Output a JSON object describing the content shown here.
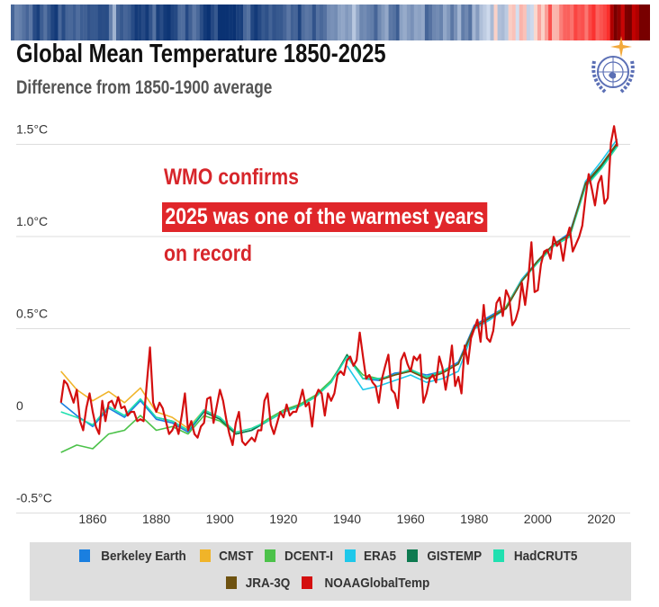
{
  "header": {
    "title": "Global Mean Temperature 1850-2025",
    "subtitle": "Difference from 1850-1900 average"
  },
  "annotation": {
    "line1": "WMO confirms",
    "line2": "2025 was one of the warmest years",
    "line3": "on record"
  },
  "colors": {
    "annotation": "#e0262a",
    "legend_bg": "#dedede",
    "grid": "#dddddd"
  },
  "logo": {
    "name": "wmo-emblem-icon"
  },
  "chart_data": {
    "type": "line",
    "title": "Global Mean Temperature 1850-2025",
    "subtitle": "Difference from 1850-1900 average",
    "xlim": [
      1850,
      2025
    ],
    "ylim": [
      -0.5,
      1.55
    ],
    "x_ticks": [
      "1860",
      "1880",
      "1900",
      "1920",
      "1940",
      "1960",
      "1980",
      "2000",
      "2020"
    ],
    "x_tick_values": [
      1860,
      1880,
      1900,
      1920,
      1940,
      1960,
      1980,
      2000,
      2020
    ],
    "y_ticks": [
      "1.5°C",
      "1.0°C",
      "0.5°C",
      "0",
      "-0.5°C"
    ],
    "y_tick_values": [
      1.5,
      1.0,
      0.5,
      0,
      -0.5
    ],
    "grid": true,
    "legend_position": "bottom",
    "series": [
      {
        "name": "Berkeley Earth",
        "color": "#1a7fe0",
        "start": 1850,
        "step": 5,
        "values": [
          0.05,
          -0.02,
          -0.08,
          0.02,
          -0.03,
          0.06,
          -0.04,
          -0.06,
          -0.11,
          0.0,
          -0.04,
          -0.12,
          -0.1,
          -0.05,
          0.0,
          0.04,
          0.08,
          0.16,
          0.3,
          0.18,
          0.17,
          0.21,
          0.22,
          0.2,
          0.22,
          0.27,
          0.47,
          0.52,
          0.57,
          0.72,
          0.82,
          0.91,
          0.97,
          1.24,
          1.34,
          1.46
        ]
      },
      {
        "name": "CMST",
        "color": "#f0b429",
        "start": 1850,
        "step": 5,
        "values": [
          0.22,
          0.12,
          0.06,
          0.11,
          0.05,
          0.13,
          0.0,
          -0.03,
          -0.09,
          0.01,
          -0.03,
          -0.11,
          -0.09,
          -0.05,
          0.0,
          0.03,
          0.08,
          0.16,
          0.31,
          0.18,
          0.18,
          0.2,
          0.23,
          0.19,
          0.22,
          0.26,
          0.46,
          0.51,
          0.56,
          0.71,
          0.81,
          0.9,
          0.95,
          1.22,
          1.32,
          1.44
        ]
      },
      {
        "name": "DCENT-I",
        "color": "#4cc24a",
        "start": 1850,
        "step": 5,
        "values": [
          -0.22,
          -0.18,
          -0.2,
          -0.12,
          -0.1,
          -0.02,
          -0.1,
          -0.08,
          -0.12,
          -0.02,
          -0.05,
          -0.12,
          -0.1,
          -0.04,
          0.01,
          0.04,
          0.09,
          0.17,
          0.3,
          0.2,
          0.18,
          0.2,
          0.22,
          0.19,
          0.21,
          0.26,
          0.46,
          0.51,
          0.57,
          0.72,
          0.82,
          0.91,
          0.96,
          1.23,
          1.33,
          1.45
        ]
      },
      {
        "name": "ERA5",
        "color": "#1ec8ea",
        "start": 1940,
        "step": 5,
        "values": [
          0.25,
          0.12,
          0.14,
          0.17,
          0.2,
          0.16,
          0.18,
          0.22,
          0.45,
          0.5,
          0.56,
          0.72,
          0.82,
          0.91,
          0.96,
          1.25,
          1.36,
          1.48
        ]
      },
      {
        "name": "GISTEMP",
        "color": "#0e7a50",
        "start": 1880,
        "step": 5,
        "values": [
          -0.03,
          -0.05,
          -0.1,
          0.0,
          -0.04,
          -0.12,
          -0.1,
          -0.05,
          0.0,
          0.03,
          0.08,
          0.16,
          0.31,
          0.18,
          0.18,
          0.2,
          0.23,
          0.19,
          0.22,
          0.26,
          0.46,
          0.51,
          0.56,
          0.71,
          0.81,
          0.9,
          0.95,
          1.23,
          1.33,
          1.45
        ]
      },
      {
        "name": "HadCRUT5",
        "color": "#20e0b0",
        "start": 1850,
        "step": 5,
        "values": [
          0.0,
          -0.03,
          -0.07,
          0.03,
          -0.02,
          0.07,
          -0.03,
          -0.05,
          -0.1,
          0.01,
          -0.03,
          -0.11,
          -0.09,
          -0.05,
          0.0,
          0.03,
          0.08,
          0.16,
          0.3,
          0.18,
          0.18,
          0.2,
          0.23,
          0.19,
          0.22,
          0.26,
          0.46,
          0.51,
          0.56,
          0.71,
          0.81,
          0.9,
          0.95,
          1.22,
          1.32,
          1.44
        ]
      },
      {
        "name": "JRA-3Q",
        "color": "#6e5210",
        "start": 1950,
        "step": 5,
        "values": [
          0.17,
          0.2,
          0.22,
          0.18,
          0.21,
          0.26,
          0.46,
          0.51,
          0.56,
          0.71,
          0.82,
          0.91,
          0.96,
          1.24,
          1.34,
          1.46
        ]
      },
      {
        "name": "NOAAGlobalTemp",
        "color": "#d40f0f",
        "start": 1850,
        "step": 1,
        "values": [
          0.05,
          0.17,
          0.15,
          0.1,
          0.05,
          0.12,
          -0.05,
          -0.1,
          0.02,
          0.1,
          0.0,
          -0.08,
          -0.12,
          0.06,
          -0.05,
          0.05,
          0.06,
          0.02,
          0.08,
          0.02,
          0.03,
          -0.02,
          0.0,
          0.0,
          -0.05,
          -0.04,
          -0.05,
          0.15,
          0.35,
          0.05,
          0.0,
          0.05,
          0.02,
          -0.05,
          -0.12,
          -0.1,
          -0.06,
          -0.12,
          -0.02,
          0.1,
          -0.1,
          -0.05,
          -0.12,
          -0.14,
          -0.08,
          -0.06,
          0.07,
          0.08,
          -0.06,
          0.03,
          0.12,
          0.06,
          -0.04,
          -0.12,
          -0.18,
          -0.06,
          0.0,
          -0.16,
          -0.18,
          -0.16,
          -0.14,
          -0.16,
          -0.1,
          -0.1,
          0.06,
          0.1,
          -0.07,
          -0.12,
          -0.06,
          0.0,
          -0.03,
          0.04,
          -0.02,
          0.0,
          0.0,
          0.05,
          0.12,
          0.03,
          0.05,
          -0.08,
          0.08,
          0.12,
          0.1,
          -0.02,
          0.1,
          0.06,
          0.1,
          0.2,
          0.22,
          0.2,
          0.28,
          0.3,
          0.25,
          0.28,
          0.43,
          0.3,
          0.18,
          0.2,
          0.16,
          0.14,
          0.05,
          0.18,
          0.25,
          0.31,
          0.12,
          0.1,
          0.02,
          0.28,
          0.32,
          0.26,
          0.22,
          0.3,
          0.28,
          0.31,
          0.05,
          0.1,
          0.18,
          0.2,
          0.16,
          0.3,
          0.24,
          0.12,
          0.22,
          0.36,
          0.14,
          0.19,
          0.1,
          0.36,
          0.26,
          0.4,
          0.45,
          0.5,
          0.38,
          0.58,
          0.4,
          0.38,
          0.44,
          0.59,
          0.62,
          0.52,
          0.66,
          0.62,
          0.47,
          0.5,
          0.56,
          0.7,
          0.58,
          0.72,
          0.92,
          0.65,
          0.66,
          0.8,
          0.87,
          0.88,
          0.83,
          0.95,
          0.9,
          0.92,
          0.82,
          0.94,
          1.0,
          0.87,
          0.91,
          0.95,
          1.01,
          1.16,
          1.29,
          1.21,
          1.12,
          1.24,
          1.28,
          1.13,
          1.16,
          1.46,
          1.55,
          1.44
        ]
      }
    ]
  }
}
